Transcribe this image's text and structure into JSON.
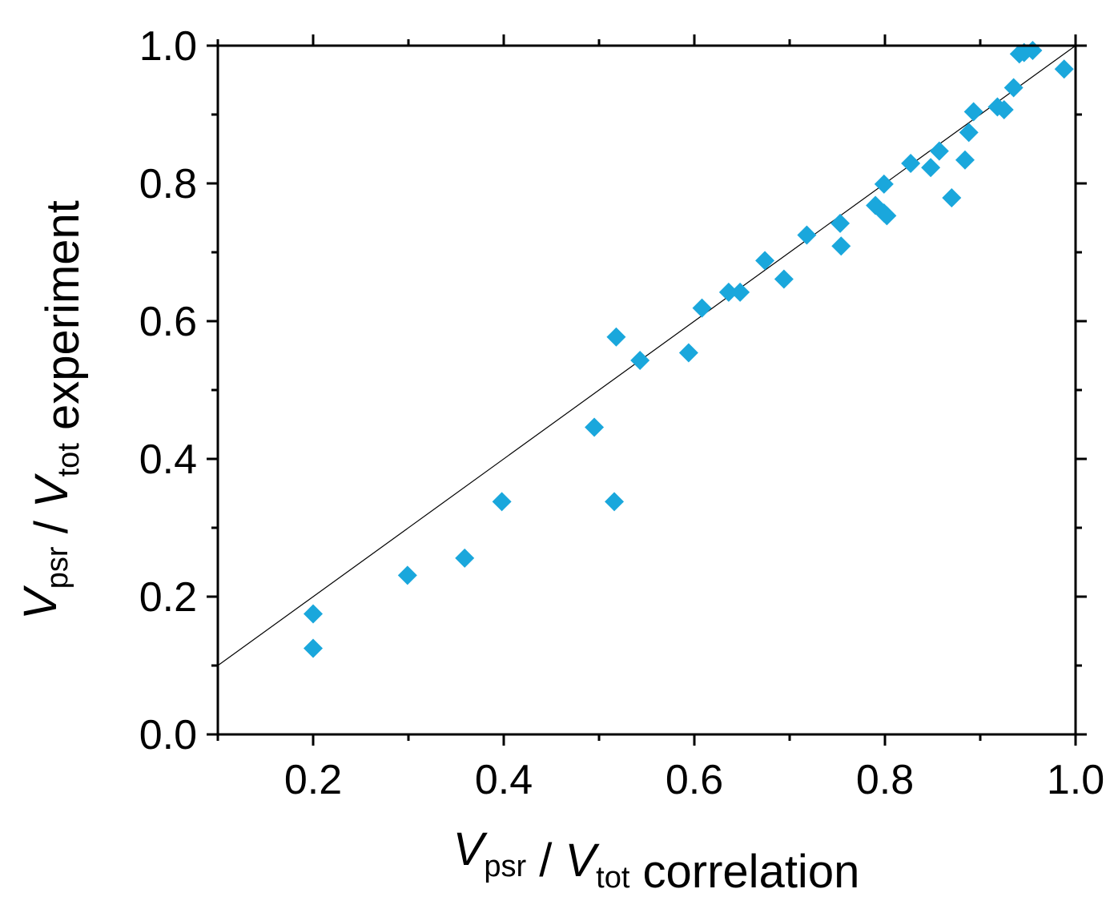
{
  "chart_data": {
    "type": "scatter",
    "title": "",
    "xlabel": {
      "parts": [
        {
          "text": "V",
          "style": "italic"
        },
        {
          "text": "psr",
          "style": "sub"
        },
        {
          "text": " / ",
          "style": "normal"
        },
        {
          "text": "V",
          "style": "italic"
        },
        {
          "text": "tot",
          "style": "sub"
        },
        {
          "text": " correlation",
          "style": "normal"
        }
      ]
    },
    "ylabel": {
      "parts": [
        {
          "text": "V",
          "style": "italic"
        },
        {
          "text": "psr",
          "style": "sub"
        },
        {
          "text": " / ",
          "style": "normal"
        },
        {
          "text": "V",
          "style": "italic"
        },
        {
          "text": "tot",
          "style": "sub"
        },
        {
          "text": " experiment",
          "style": "normal"
        }
      ]
    },
    "xlim": [
      0.1,
      1.0
    ],
    "ylim": [
      0.0,
      1.0
    ],
    "xticks": [
      "0.2",
      "0.4",
      "0.6",
      "0.8",
      "1.0"
    ],
    "xtick_values": [
      0.2,
      0.4,
      0.6,
      0.8,
      1.0
    ],
    "yticks": [
      "0.0",
      "0.2",
      "0.4",
      "0.6",
      "0.8",
      "1.0"
    ],
    "ytick_values": [
      0.0,
      0.2,
      0.4,
      0.6,
      0.8,
      1.0
    ],
    "grid": false,
    "reference_line": {
      "name": "y = x",
      "from": [
        0.1,
        0.1
      ],
      "to": [
        1.0,
        1.0
      ],
      "color": "#000000"
    },
    "series": [
      {
        "name": "data",
        "marker": "diamond",
        "color": "#1aa7dc",
        "points": [
          [
            0.2,
            0.175
          ],
          [
            0.2,
            0.125
          ],
          [
            0.299,
            0.231
          ],
          [
            0.359,
            0.256
          ],
          [
            0.398,
            0.338
          ],
          [
            0.495,
            0.446
          ],
          [
            0.516,
            0.338
          ],
          [
            0.518,
            0.577
          ],
          [
            0.543,
            0.543
          ],
          [
            0.594,
            0.554
          ],
          [
            0.608,
            0.619
          ],
          [
            0.636,
            0.642
          ],
          [
            0.648,
            0.642
          ],
          [
            0.674,
            0.688
          ],
          [
            0.694,
            0.661
          ],
          [
            0.718,
            0.725
          ],
          [
            0.753,
            0.742
          ],
          [
            0.754,
            0.709
          ],
          [
            0.79,
            0.768
          ],
          [
            0.799,
            0.799
          ],
          [
            0.799,
            0.757
          ],
          [
            0.802,
            0.753
          ],
          [
            0.827,
            0.829
          ],
          [
            0.848,
            0.823
          ],
          [
            0.857,
            0.847
          ],
          [
            0.87,
            0.779
          ],
          [
            0.884,
            0.834
          ],
          [
            0.888,
            0.874
          ],
          [
            0.893,
            0.904
          ],
          [
            0.918,
            0.911
          ],
          [
            0.925,
            0.907
          ],
          [
            0.935,
            0.939
          ],
          [
            0.941,
            0.988
          ],
          [
            0.946,
            0.99
          ],
          [
            0.955,
            0.993
          ],
          [
            0.988,
            0.966
          ]
        ]
      }
    ]
  }
}
